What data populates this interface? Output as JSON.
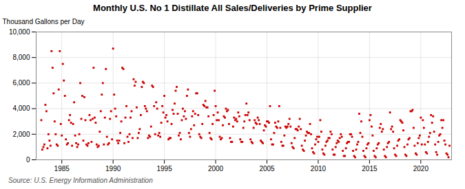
{
  "chart_data": {
    "type": "scatter",
    "title": "Monthly U.S. No 1 Distillate All Sales/Deliveries by Prime Supplier",
    "ylabel": "Thousand Gallons per Day",
    "source": "Source: U.S. Energy Information Administration",
    "color": "#cc0000",
    "marker": "square",
    "grid": true,
    "xlim": [
      1982.5,
      2023.0
    ],
    "xticks": [
      1985,
      1990,
      1995,
      2000,
      2005,
      2010,
      2015,
      2020
    ],
    "ylim": [
      0,
      10000
    ],
    "yticks": [
      0,
      {
        "value": 2000,
        "label": "2,000"
      },
      {
        "value": 4000,
        "label": "4,000"
      },
      {
        "value": 6000,
        "label": "6,000"
      },
      {
        "value": 8000,
        "label": "8,000"
      },
      {
        "value": 10000,
        "label": "10,000"
      }
    ],
    "x": [
      1983.0,
      1983.1,
      1983.2,
      1983.3,
      1983.4,
      1983.5,
      1983.6,
      1983.7,
      1983.8,
      1983.9,
      1984.0,
      1984.1,
      1984.2,
      1984.3,
      1984.4,
      1984.5,
      1984.6,
      1984.7,
      1984.8,
      1984.9,
      1985.0,
      1985.1,
      1985.2,
      1985.3,
      1985.4,
      1985.5,
      1985.6,
      1985.7,
      1985.8,
      1985.9,
      1986.0,
      1986.1,
      1986.2,
      1986.3,
      1986.4,
      1986.5,
      1986.6,
      1986.7,
      1986.8,
      1986.9,
      1987.0,
      1987.1,
      1987.2,
      1987.3,
      1987.4,
      1987.5,
      1987.6,
      1987.7,
      1987.8,
      1987.9,
      1988.0,
      1988.1,
      1988.2,
      1988.3,
      1988.4,
      1988.5,
      1988.6,
      1988.7,
      1988.8,
      1988.9,
      1989.0,
      1989.1,
      1989.2,
      1989.3,
      1989.4,
      1989.5,
      1989.6,
      1989.7,
      1989.8,
      1989.9,
      1990.0,
      1990.1,
      1990.2,
      1990.3,
      1990.4,
      1990.5,
      1990.6,
      1990.7,
      1990.8,
      1990.9,
      1991.0,
      1991.1,
      1991.2,
      1991.3,
      1991.4,
      1991.5,
      1991.6,
      1991.7,
      1991.8,
      1991.9,
      1992.0,
      1992.1,
      1992.2,
      1992.3,
      1992.4,
      1992.5,
      1992.6,
      1992.7,
      1992.8,
      1992.9,
      1993.0,
      1993.1,
      1993.2,
      1993.3,
      1993.4,
      1993.5,
      1993.6,
      1993.7,
      1993.8,
      1993.9,
      1994.0,
      1994.1,
      1994.2,
      1994.3,
      1994.4,
      1994.5,
      1994.6,
      1994.7,
      1994.8,
      1994.9,
      1995.0,
      1995.1,
      1995.2,
      1995.3,
      1995.4,
      1995.5,
      1995.6,
      1995.7,
      1995.8,
      1995.9,
      1996.0,
      1996.1,
      1996.2,
      1996.3,
      1996.4,
      1996.5,
      1996.6,
      1996.7,
      1996.8,
      1996.9,
      1997.0,
      1997.1,
      1997.2,
      1997.3,
      1997.4,
      1997.5,
      1997.6,
      1997.7,
      1997.8,
      1997.9,
      1998.0,
      1998.1,
      1998.2,
      1998.3,
      1998.4,
      1998.5,
      1998.6,
      1998.7,
      1998.8,
      1998.9,
      1999.0,
      1999.1,
      1999.2,
      1999.3,
      1999.4,
      1999.5,
      1999.6,
      1999.7,
      1999.8,
      1999.9,
      2000.0,
      2000.1,
      2000.2,
      2000.3,
      2000.4,
      2000.5,
      2000.6,
      2000.7,
      2000.8,
      2000.9,
      2001.0,
      2001.1,
      2001.2,
      2001.3,
      2001.4,
      2001.5,
      2001.6,
      2001.7,
      2001.8,
      2001.9,
      2002.0,
      2002.1,
      2002.2,
      2002.3,
      2002.4,
      2002.5,
      2002.6,
      2002.7,
      2002.8,
      2002.9,
      2003.0,
      2003.1,
      2003.2,
      2003.3,
      2003.4,
      2003.5,
      2003.6,
      2003.7,
      2003.8,
      2003.9,
      2004.0,
      2004.1,
      2004.2,
      2004.3,
      2004.4,
      2004.5,
      2004.6,
      2004.7,
      2004.8,
      2004.9,
      2005.0,
      2005.1,
      2005.2,
      2005.3,
      2005.4,
      2005.5,
      2005.6,
      2005.7,
      2005.8,
      2005.9,
      2006.0,
      2006.1,
      2006.2,
      2006.3,
      2006.4,
      2006.5,
      2006.6,
      2006.7,
      2006.8,
      2006.9,
      2007.0,
      2007.1,
      2007.2,
      2007.3,
      2007.4,
      2007.5,
      2007.6,
      2007.7,
      2007.8,
      2007.9,
      2008.0,
      2008.1,
      2008.2,
      2008.3,
      2008.4,
      2008.5,
      2008.6,
      2008.7,
      2008.8,
      2008.9,
      2009.0,
      2009.1,
      2009.2,
      2009.3,
      2009.4,
      2009.5,
      2009.6,
      2009.7,
      2009.8,
      2009.9,
      2010.0,
      2010.1,
      2010.2,
      2010.3,
      2010.4,
      2010.5,
      2010.6,
      2010.7,
      2010.8,
      2010.9,
      2011.0,
      2011.1,
      2011.2,
      2011.3,
      2011.4,
      2011.5,
      2011.6,
      2011.7,
      2011.8,
      2011.9,
      2012.0,
      2012.1,
      2012.2,
      2012.3,
      2012.4,
      2012.5,
      2012.6,
      2012.7,
      2012.8,
      2012.9,
      2013.0,
      2013.1,
      2013.2,
      2013.3,
      2013.4,
      2013.5,
      2013.6,
      2013.7,
      2013.8,
      2013.9,
      2014.0,
      2014.1,
      2014.2,
      2014.3,
      2014.4,
      2014.5,
      2014.6,
      2014.7,
      2014.8,
      2014.9,
      2015.0,
      2015.1,
      2015.2,
      2015.3,
      2015.4,
      2015.5,
      2015.6,
      2015.7,
      2015.8,
      2015.9,
      2016.0,
      2016.1,
      2016.2,
      2016.3,
      2016.4,
      2016.5,
      2016.6,
      2016.7,
      2016.8,
      2016.9,
      2017.0,
      2017.1,
      2017.2,
      2017.3,
      2017.4,
      2017.5,
      2017.6,
      2017.7,
      2017.8,
      2017.9,
      2018.0,
      2018.1,
      2018.2,
      2018.3,
      2018.4,
      2018.5,
      2018.6,
      2018.7,
      2018.8,
      2018.9,
      2019.0,
      2019.1,
      2019.2,
      2019.3,
      2019.4,
      2019.5,
      2019.6,
      2019.7,
      2019.8,
      2019.9,
      2020.0,
      2020.1,
      2020.2,
      2020.3,
      2020.4,
      2020.5,
      2020.6,
      2020.7,
      2020.8,
      2020.9,
      2021.0,
      2021.1,
      2021.2,
      2021.3,
      2021.4,
      2021.5,
      2021.6,
      2021.7,
      2021.8,
      2021.9,
      2022.0,
      2022.1,
      2022.2,
      2022.3,
      2022.4,
      2022.5,
      2022.6,
      2022.7,
      2022.8
    ],
    "values": [
      3100,
      800,
      1000,
      1200,
      4300,
      3800,
      900,
      2000,
      1500,
      1100,
      8500,
      7200,
      5200,
      3000,
      2000,
      1200,
      1100,
      5500,
      8500,
      2800,
      1900,
      7500,
      6200,
      5000,
      1600,
      1200,
      1300,
      3100,
      3500,
      2900,
      1100,
      2800,
      4500,
      1900,
      1300,
      1000,
      1200,
      2000,
      6000,
      3200,
      5000,
      1500,
      4900,
      3100,
      1200,
      1100,
      1300,
      3500,
      3100,
      1400,
      3200,
      7200,
      3300,
      2900,
      1200,
      1000,
      1100,
      2200,
      3800,
      5100,
      6000,
      1200,
      3300,
      7100,
      1800,
      1200,
      1300,
      3200,
      3800,
      1600,
      8700,
      5100,
      4000,
      3400,
      1500,
      1300,
      1500,
      2100,
      3000,
      7200,
      7100,
      1300,
      3300,
      4200,
      1800,
      1400,
      2000,
      3300,
      3800,
      1700,
      6300,
      5800,
      6100,
      4100,
      1700,
      2100,
      2400,
      3500,
      5700,
      6100,
      6000,
      4200,
      4000,
      3800,
      1700,
      1900,
      1800,
      2600,
      5800,
      5700,
      4200,
      2000,
      4500,
      4000,
      1900,
      2100,
      1800,
      2900,
      4200,
      3700,
      5000,
      3300,
      3500,
      3000,
      1600,
      1700,
      1700,
      2800,
      3900,
      3600,
      4400,
      5400,
      5700,
      3600,
      1900,
      2100,
      1600,
      3100,
      4000,
      3400,
      3800,
      3200,
      5000,
      5500,
      2100,
      1800,
      2400,
      3400,
      3800,
      2700,
      3600,
      5200,
      5200,
      3500,
      2000,
      1800,
      1700,
      2800,
      4300,
      4200,
      4600,
      4100,
      4100,
      3400,
      2100,
      1700,
      1600,
      2800,
      3500,
      5400,
      4200,
      3100,
      3700,
      3100,
      1800,
      1600,
      1700,
      2700,
      3400,
      3300,
      4000,
      3800,
      3900,
      2800,
      1700,
      1400,
      1400,
      2600,
      3300,
      3100,
      3200,
      3000,
      3700,
      3400,
      1600,
      1400,
      1400,
      2500,
      3000,
      3500,
      4400,
      3500,
      3700,
      3100,
      1600,
      1400,
      1300,
      2500,
      3100,
      2900,
      2800,
      3300,
      3100,
      2800,
      1500,
      1400,
      1300,
      2300,
      2700,
      2600,
      3000,
      3000,
      2900,
      4200,
      1600,
      1200,
      1200,
      2100,
      2900,
      2600,
      2500,
      3000,
      4200,
      2500,
      1400,
      1100,
      1100,
      1900,
      2600,
      2500,
      2600,
      2800,
      3200,
      2600,
      1300,
      1000,
      900,
      1700,
      2400,
      2400,
      2300,
      2600,
      3200,
      2400,
      1100,
      800,
      700,
      1500,
      1900,
      2200,
      2100,
      2100,
      2800,
      2000,
      900,
      600,
      500,
      1200,
      1600,
      1800,
      1400,
      1800,
      3100,
      2200,
      800,
      500,
      400,
      1100,
      1400,
      1500,
      1700,
      1700,
      2200,
      2000,
      800,
      400,
      400,
      1000,
      1300,
      1500,
      1400,
      1700,
      2000,
      1800,
      700,
      300,
      300,
      900,
      1300,
      1400,
      1400,
      2000,
      2000,
      1800,
      700,
      300,
      200,
      800,
      1200,
      1400,
      3600,
      2100,
      3000,
      1800,
      700,
      300,
      200,
      900,
      1200,
      1300,
      3100,
      3500,
      2600,
      1900,
      700,
      300,
      200,
      900,
      1200,
      1300,
      2500,
      2800,
      2200,
      2400,
      800,
      300,
      200,
      1000,
      1300,
      1400,
      3700,
      2400,
      2600,
      2200,
      900,
      400,
      300,
      1100,
      1500,
      1600,
      3100,
      3000,
      2900,
      2300,
      1000,
      400,
      300,
      1200,
      1600,
      1700,
      3800,
      3800,
      3900,
      2500,
      1100,
      500,
      400,
      1300,
      1700,
      1900,
      3300,
      1200,
      3100,
      2500,
      1200,
      600,
      500,
      1400,
      1800,
      2100,
      3500,
      2900,
      3400,
      2200,
      1200,
      600,
      400,
      1400,
      1900,
      2000,
      3100,
      2500,
      3100,
      1500,
      1200,
      500,
      400,
      200,
      1100
    ]
  }
}
